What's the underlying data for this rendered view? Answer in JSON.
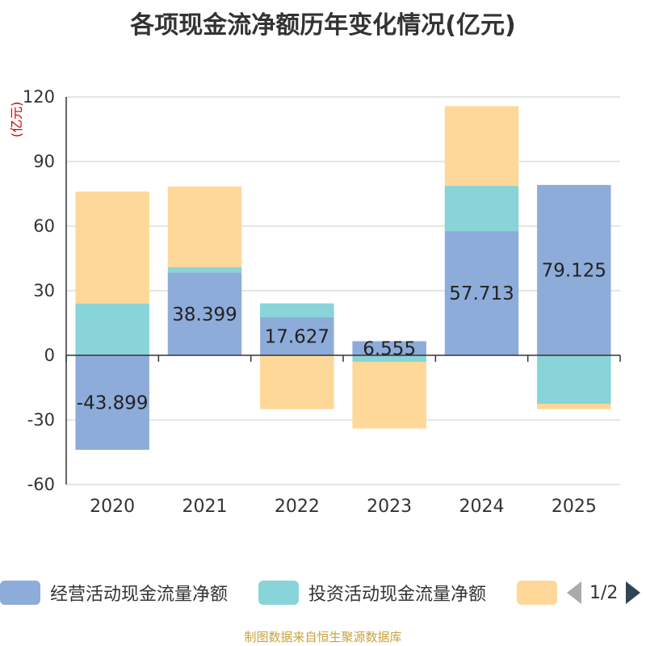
{
  "title": "各项现金流净额历年变化情况(亿元)",
  "source": "制图数据来自恒生聚源数据库",
  "pager": {
    "text": "1/2"
  },
  "chart_data": {
    "type": "bar",
    "stacked": true,
    "title": "各项现金流净额历年变化情况(亿元)",
    "ylabel": "(亿元)",
    "ylim": [
      -60,
      120
    ],
    "yticks": [
      -60,
      -30,
      0,
      30,
      60,
      90,
      120
    ],
    "grid": true,
    "legend_position": "bottom",
    "categories": [
      "2020",
      "2021",
      "2022",
      "2023",
      "2024",
      "2025"
    ],
    "series": [
      {
        "name": "经营活动现金流量净额",
        "color": "#8eacd9",
        "values": [
          -43.899,
          38.399,
          17.627,
          6.555,
          57.713,
          79.125
        ]
      },
      {
        "name": "投资活动现金流量净额",
        "color": "#88d4d8",
        "values": [
          24,
          2.5,
          6.5,
          -3,
          21,
          -22.5
        ]
      },
      {
        "name": "",
        "color": "#fed898",
        "values": [
          52,
          37.5,
          -25,
          -31,
          37,
          -2.5
        ]
      }
    ],
    "data_labels": [
      "-43.899",
      "38.399",
      "17.627",
      "6.555",
      "57.713",
      "79.125"
    ]
  }
}
